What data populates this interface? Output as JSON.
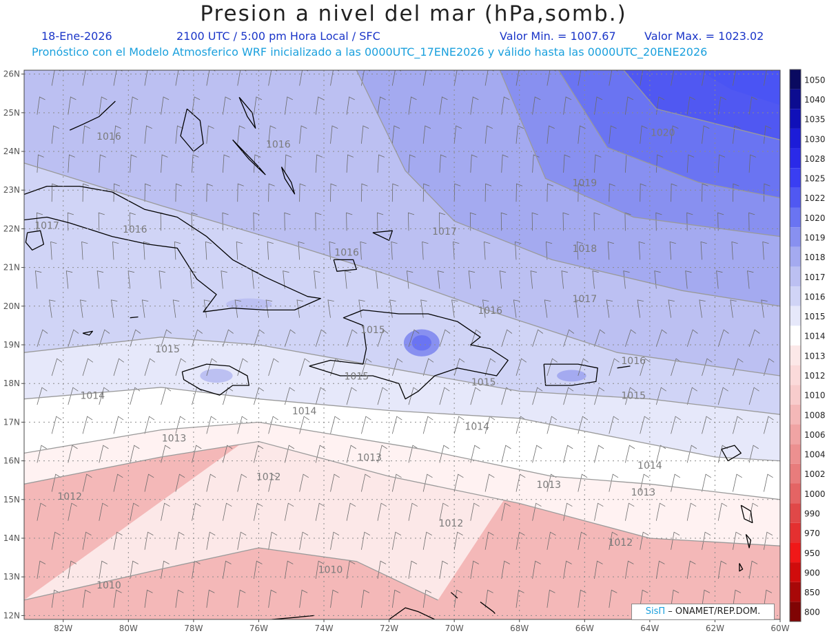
{
  "header": {
    "title": "Presion a nivel del mar (hPa,somb.)",
    "date": "18-Ene-2026",
    "time": "2100 UTC / 5:00 pm Hora Local / SFC",
    "min": "Valor Min. = 1007.67",
    "max": "Valor Max. = 1023.02",
    "forecast": "Pronóstico con el Modelo Atmosferico WRF inicializado a las 0000UTC_17ENE2026 y válido hasta las  0000UTC_20ENE2026"
  },
  "axes": {
    "lon_labels": [
      "82W",
      "80W",
      "78W",
      "76W",
      "74W",
      "72W",
      "70W",
      "68W",
      "66W",
      "64W",
      "62W",
      "60W"
    ],
    "lat_labels": [
      "26N",
      "25N",
      "24N",
      "23N",
      "22N",
      "21N",
      "20N",
      "19N",
      "18N",
      "17N",
      "16N",
      "15N",
      "14N",
      "13N",
      "12N"
    ],
    "lon_range": [
      -83.2,
      -60
    ],
    "lat_range": [
      11.9,
      26.1
    ]
  },
  "colorbar": {
    "levels": [
      "1050",
      "1040",
      "1035",
      "1030",
      "1028",
      "1025",
      "1022",
      "1020",
      "1019",
      "1018",
      "1017",
      "1016",
      "1015",
      "1014",
      "1013",
      "1012",
      "1010",
      "1008",
      "1006",
      "1004",
      "1002",
      "1000",
      "990",
      "970",
      "950",
      "900",
      "850",
      "800"
    ],
    "colors": [
      "#0a0a60",
      "#0c0c90",
      "#1010b8",
      "#1c1cd8",
      "#2a2ae8",
      "#3a3ef2",
      "#5058f2",
      "#6a74f2",
      "#8890f0",
      "#a4aaf0",
      "#bcc0f2",
      "#d0d4f6",
      "#e6e8fa",
      "#ffffff",
      "#fce8e8",
      "#fbdada",
      "#f8cccc",
      "#f4b8b8",
      "#f0a4a4",
      "#ec9090",
      "#e87c7c",
      "#e46464",
      "#e04848",
      "#e43030",
      "#f01818",
      "#d00c0c",
      "#a80808",
      "#800404"
    ]
  },
  "isobars": [
    {
      "label": "1010",
      "points": [
        [
          -83.2,
          12.4
        ],
        [
          -79,
          13.2
        ],
        [
          -76,
          13.75
        ],
        [
          -73,
          13.4
        ],
        [
          -70.5,
          12.4
        ]
      ]
    },
    {
      "label": "1012",
      "points": [
        [
          -83.2,
          15.4
        ],
        [
          -79,
          16.1
        ],
        [
          -76,
          16.5
        ],
        [
          -72,
          15.6
        ],
        [
          -68,
          14.9
        ],
        [
          -64,
          14.0
        ],
        [
          -60,
          13.8
        ]
      ]
    },
    {
      "label": "1013",
      "points": [
        [
          -83.2,
          16.2
        ],
        [
          -79,
          16.8
        ],
        [
          -76,
          17.0
        ],
        [
          -71,
          16.3
        ],
        [
          -67,
          15.6
        ],
        [
          -64,
          15.4
        ],
        [
          -60,
          15.0
        ]
      ]
    },
    {
      "label": "1014",
      "points": [
        [
          -83.2,
          17.6
        ],
        [
          -79,
          17.9
        ],
        [
          -76,
          17.6
        ],
        [
          -72,
          17.3
        ],
        [
          -68,
          17.1
        ],
        [
          -65,
          16.6
        ],
        [
          -62,
          16.1
        ],
        [
          -60,
          16.0
        ]
      ]
    },
    {
      "label": "1015",
      "points": [
        [
          -83.2,
          18.8
        ],
        [
          -79,
          19.2
        ],
        [
          -76,
          19.0
        ],
        [
          -72,
          18.4
        ],
        [
          -68,
          17.8
        ],
        [
          -64,
          17.6
        ],
        [
          -60,
          17.2
        ]
      ]
    },
    {
      "label": "1016",
      "points": [
        [
          -83.2,
          23.7
        ],
        [
          -79,
          22.6
        ],
        [
          -75,
          21.6
        ],
        [
          -72,
          20.8
        ],
        [
          -69,
          19.9
        ],
        [
          -65,
          18.8
        ],
        [
          -60,
          18.2
        ]
      ]
    },
    {
      "label": "1017",
      "points": [
        [
          -73,
          26.1
        ],
        [
          -71.5,
          23.5
        ],
        [
          -70,
          22.2
        ],
        [
          -67,
          21.2
        ],
        [
          -63,
          20.4
        ],
        [
          -60,
          20.0
        ]
      ]
    },
    {
      "label": "1018",
      "points": [
        [
          -68.6,
          26.1
        ],
        [
          -67.2,
          23.3
        ],
        [
          -64.5,
          22.3
        ],
        [
          -60,
          21.8
        ]
      ]
    },
    {
      "label": "1019",
      "points": [
        [
          -66.8,
          26.1
        ],
        [
          -65.3,
          24.1
        ],
        [
          -62.5,
          23.2
        ],
        [
          -60,
          22.8
        ]
      ]
    },
    {
      "label": "1020",
      "points": [
        [
          -64.8,
          26.1
        ],
        [
          -63.8,
          25.1
        ],
        [
          -60,
          24.3
        ]
      ]
    }
  ],
  "isobar_labels": [
    {
      "text": "1016",
      "lon": -80.6,
      "lat": 24.3
    },
    {
      "text": "1016",
      "lon": -75.4,
      "lat": 24.1
    },
    {
      "text": "1017",
      "lon": -82.5,
      "lat": 22.0
    },
    {
      "text": "1016",
      "lon": -79.8,
      "lat": 21.9
    },
    {
      "text": "1016",
      "lon": -73.3,
      "lat": 21.3
    },
    {
      "text": "1017",
      "lon": -70.3,
      "lat": 21.85
    },
    {
      "text": "1018",
      "lon": -66.0,
      "lat": 21.4
    },
    {
      "text": "1019",
      "lon": -66.0,
      "lat": 23.1
    },
    {
      "text": "1020",
      "lon": -63.6,
      "lat": 24.4
    },
    {
      "text": "1017",
      "lon": -66.0,
      "lat": 20.1
    },
    {
      "text": "1016",
      "lon": -68.9,
      "lat": 19.8
    },
    {
      "text": "1016",
      "lon": -64.5,
      "lat": 18.5
    },
    {
      "text": "1015",
      "lon": -72.5,
      "lat": 19.3
    },
    {
      "text": "1015",
      "lon": -78.8,
      "lat": 18.8
    },
    {
      "text": "1015",
      "lon": -73.0,
      "lat": 18.1
    },
    {
      "text": "1015",
      "lon": -69.1,
      "lat": 17.95
    },
    {
      "text": "1015",
      "lon": -64.5,
      "lat": 17.6
    },
    {
      "text": "1014",
      "lon": -81.1,
      "lat": 17.6
    },
    {
      "text": "1014",
      "lon": -74.6,
      "lat": 17.2
    },
    {
      "text": "1014",
      "lon": -69.3,
      "lat": 16.8
    },
    {
      "text": "1014",
      "lon": -64.0,
      "lat": 15.8
    },
    {
      "text": "1013",
      "lon": -78.6,
      "lat": 16.5
    },
    {
      "text": "1013",
      "lon": -72.6,
      "lat": 16.0
    },
    {
      "text": "1013",
      "lon": -67.1,
      "lat": 15.3
    },
    {
      "text": "1013",
      "lon": -64.2,
      "lat": 15.1
    },
    {
      "text": "1012",
      "lon": -75.7,
      "lat": 15.5
    },
    {
      "text": "1012",
      "lon": -81.8,
      "lat": 15.0
    },
    {
      "text": "1012",
      "lon": -70.1,
      "lat": 14.3
    },
    {
      "text": "1012",
      "lon": -64.9,
      "lat": 13.8
    },
    {
      "text": "1010",
      "lon": -73.8,
      "lat": 13.1
    },
    {
      "text": "1010",
      "lon": -80.6,
      "lat": 12.7
    }
  ],
  "coastlines": [
    {
      "name": "Cuba",
      "points": [
        [
          -84.9,
          21.9
        ],
        [
          -83.5,
          22.8
        ],
        [
          -82.5,
          23.1
        ],
        [
          -81.5,
          23.1
        ],
        [
          -80.5,
          22.95
        ],
        [
          -79.5,
          22.5
        ],
        [
          -78.5,
          22.3
        ],
        [
          -77.6,
          21.8
        ],
        [
          -76.8,
          21.2
        ],
        [
          -75.8,
          20.75
        ],
        [
          -74.5,
          20.25
        ],
        [
          -74.1,
          20.2
        ],
        [
          -74.9,
          19.9
        ],
        [
          -75.8,
          19.9
        ],
        [
          -76.8,
          19.95
        ],
        [
          -77.7,
          19.85
        ],
        [
          -77.3,
          20.3
        ],
        [
          -77.9,
          20.7
        ],
        [
          -78.5,
          21.5
        ],
        [
          -79.4,
          21.6
        ],
        [
          -80.5,
          21.8
        ],
        [
          -81.8,
          22.15
        ],
        [
          -82.5,
          22.3
        ],
        [
          -83.5,
          22.2
        ],
        [
          -84.9,
          21.9
        ]
      ]
    },
    {
      "name": "Isla de la Juventud",
      "points": [
        [
          -83.1,
          21.9
        ],
        [
          -82.7,
          21.95
        ],
        [
          -82.6,
          21.6
        ],
        [
          -82.95,
          21.45
        ],
        [
          -83.15,
          21.65
        ],
        [
          -83.1,
          21.9
        ]
      ]
    },
    {
      "name": "Jamaica",
      "points": [
        [
          -78.35,
          18.3
        ],
        [
          -77.6,
          18.5
        ],
        [
          -76.9,
          18.45
        ],
        [
          -76.35,
          18.2
        ],
        [
          -76.3,
          17.95
        ],
        [
          -76.8,
          17.95
        ],
        [
          -77.2,
          17.7
        ],
        [
          -77.8,
          17.85
        ],
        [
          -78.3,
          18.1
        ],
        [
          -78.35,
          18.3
        ]
      ]
    },
    {
      "name": "Hispaniola",
      "points": [
        [
          -74.45,
          18.45
        ],
        [
          -73.8,
          18.6
        ],
        [
          -72.8,
          18.5
        ],
        [
          -72.7,
          18.9
        ],
        [
          -72.8,
          19.5
        ],
        [
          -73.4,
          19.7
        ],
        [
          -72.8,
          19.9
        ],
        [
          -71.7,
          19.8
        ],
        [
          -70.8,
          19.8
        ],
        [
          -69.9,
          19.6
        ],
        [
          -69.2,
          19.2
        ],
        [
          -69.5,
          19.0
        ],
        [
          -68.9,
          18.9
        ],
        [
          -68.35,
          18.6
        ],
        [
          -68.7,
          18.2
        ],
        [
          -69.9,
          18.4
        ],
        [
          -70.6,
          18.2
        ],
        [
          -71.1,
          17.8
        ],
        [
          -71.5,
          17.6
        ],
        [
          -71.7,
          18.0
        ],
        [
          -72.5,
          18.2
        ],
        [
          -73.5,
          18.2
        ],
        [
          -74.45,
          18.45
        ]
      ]
    },
    {
      "name": "Puerto Rico",
      "points": [
        [
          -67.25,
          18.5
        ],
        [
          -66.2,
          18.5
        ],
        [
          -65.6,
          18.4
        ],
        [
          -65.65,
          18.05
        ],
        [
          -66.4,
          17.95
        ],
        [
          -67.2,
          17.95
        ],
        [
          -67.25,
          18.5
        ]
      ]
    },
    {
      "name": "Andros",
      "points": [
        [
          -78.2,
          25.1
        ],
        [
          -77.8,
          24.8
        ],
        [
          -77.7,
          24.2
        ],
        [
          -78.0,
          24.0
        ],
        [
          -78.4,
          24.4
        ],
        [
          -78.2,
          25.1
        ]
      ]
    },
    {
      "name": "Eleuthera",
      "points": [
        [
          -76.6,
          25.4
        ],
        [
          -76.2,
          25.0
        ],
        [
          -76.1,
          24.6
        ],
        [
          -76.35,
          24.9
        ],
        [
          -76.6,
          25.4
        ]
      ]
    },
    {
      "name": "Exuma",
      "points": [
        [
          -76.8,
          24.3
        ],
        [
          -76.3,
          23.8
        ],
        [
          -75.8,
          23.4
        ],
        [
          -76.0,
          23.6
        ],
        [
          -76.8,
          24.3
        ]
      ]
    },
    {
      "name": "Long Island",
      "points": [
        [
          -75.3,
          23.6
        ],
        [
          -75.0,
          23.2
        ],
        [
          -74.9,
          22.9
        ],
        [
          -75.2,
          23.3
        ],
        [
          -75.3,
          23.6
        ]
      ]
    },
    {
      "name": "Florida Keys",
      "points": [
        [
          -80.4,
          25.3
        ],
        [
          -80.9,
          24.9
        ],
        [
          -81.4,
          24.7
        ],
        [
          -81.8,
          24.55
        ]
      ]
    },
    {
      "name": "Cayman Brac",
      "points": [
        [
          -79.95,
          19.7
        ],
        [
          -79.7,
          19.72
        ]
      ]
    },
    {
      "name": "Grand Cayman",
      "points": [
        [
          -81.4,
          19.3
        ],
        [
          -81.1,
          19.35
        ],
        [
          -81.2,
          19.25
        ],
        [
          -81.4,
          19.3
        ]
      ]
    },
    {
      "name": "Inagua",
      "points": [
        [
          -73.7,
          21.2
        ],
        [
          -73.1,
          21.2
        ],
        [
          -73.0,
          20.95
        ],
        [
          -73.6,
          20.9
        ],
        [
          -73.7,
          21.2
        ]
      ]
    },
    {
      "name": "Turks Caicos",
      "points": [
        [
          -72.5,
          21.9
        ],
        [
          -71.9,
          21.95
        ],
        [
          -72.0,
          21.7
        ],
        [
          -72.5,
          21.9
        ]
      ]
    },
    {
      "name": "USVI BVI",
      "points": [
        [
          -65.0,
          18.4
        ],
        [
          -64.6,
          18.45
        ]
      ]
    },
    {
      "name": "Guadeloupe",
      "points": [
        [
          -61.8,
          16.3
        ],
        [
          -61.4,
          16.4
        ],
        [
          -61.2,
          16.2
        ],
        [
          -61.6,
          16.0
        ],
        [
          -61.8,
          16.3
        ]
      ]
    },
    {
      "name": "Martinique",
      "points": [
        [
          -61.2,
          14.85
        ],
        [
          -60.9,
          14.7
        ],
        [
          -60.85,
          14.4
        ],
        [
          -61.1,
          14.5
        ],
        [
          -61.2,
          14.85
        ]
      ]
    },
    {
      "name": "St Lucia",
      "points": [
        [
          -61.05,
          14.1
        ],
        [
          -60.9,
          13.95
        ],
        [
          -60.95,
          13.75
        ],
        [
          -61.05,
          14.1
        ]
      ]
    },
    {
      "name": "St Vincent",
      "points": [
        [
          -61.25,
          13.35
        ],
        [
          -61.15,
          13.2
        ],
        [
          -61.25,
          13.15
        ],
        [
          -61.25,
          13.35
        ]
      ]
    },
    {
      "name": "Venezuela coast",
      "points": [
        [
          -72.0,
          11.9
        ],
        [
          -71.5,
          12.2
        ],
        [
          -71.1,
          12.1
        ],
        [
          -70.6,
          11.9
        ]
      ]
    },
    {
      "name": "Colombia coast",
      "points": [
        [
          -75.6,
          11.9
        ],
        [
          -74.9,
          11.95
        ],
        [
          -74.3,
          12.0
        ]
      ]
    },
    {
      "name": "Curacao",
      "points": [
        [
          -69.2,
          12.35
        ],
        [
          -68.8,
          12.1
        ],
        [
          -68.75,
          12.05
        ]
      ]
    },
    {
      "name": "Aruba",
      "points": [
        [
          -70.1,
          12.6
        ],
        [
          -69.9,
          12.45
        ]
      ]
    }
  ],
  "credit": {
    "brand": "SisΠ",
    "text": " – ONAMET/REP.DOM."
  },
  "colors": {
    "title": "#222222",
    "subtitle": "#1a35c8",
    "forecast_line": "#1aa0dd",
    "isobar": "#9a9a9a",
    "coast": "#000000"
  }
}
